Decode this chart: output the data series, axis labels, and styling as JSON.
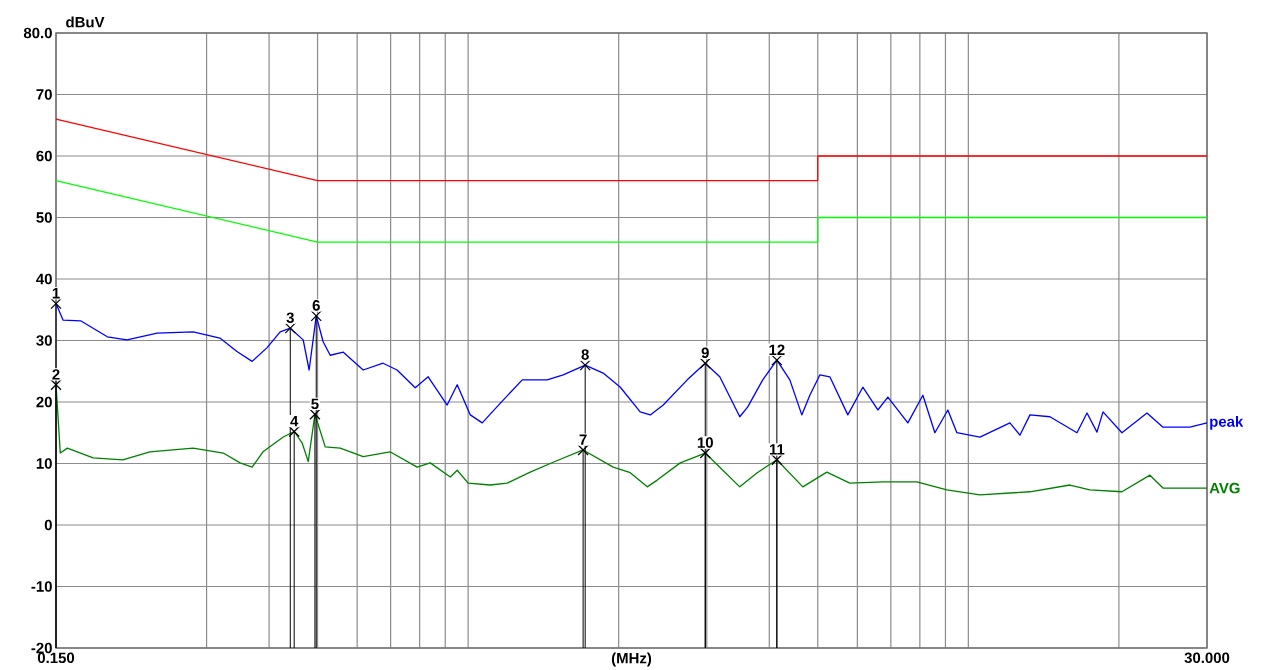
{
  "chart_data": {
    "type": "line",
    "xlabel": "(MHz)",
    "ylabel": "dBuV",
    "log": "x",
    "grid": true,
    "line_style": "solid",
    "xlim": [
      0.15,
      30
    ],
    "ylim": [
      -20,
      80
    ],
    "xticks": [
      {
        "value": 0.15,
        "label": "0.150"
      },
      {
        "value": 0.3,
        "label": null
      },
      {
        "value": 0.4,
        "label": null
      },
      {
        "value": 0.5,
        "label": null
      },
      {
        "value": 0.6,
        "label": null
      },
      {
        "value": 0.7,
        "label": null
      },
      {
        "value": 0.8,
        "label": null
      },
      {
        "value": 0.9,
        "label": null
      },
      {
        "value": 1,
        "label": null
      },
      {
        "value": 2,
        "label": null
      },
      {
        "value": 3,
        "label": null
      },
      {
        "value": 4,
        "label": null
      },
      {
        "value": 5,
        "label": null
      },
      {
        "value": 6,
        "label": null
      },
      {
        "value": 7,
        "label": null
      },
      {
        "value": 8,
        "label": null
      },
      {
        "value": 9,
        "label": null
      },
      {
        "value": 10,
        "label": null
      },
      {
        "value": 20,
        "label": null
      },
      {
        "value": 30,
        "label": "30.000"
      }
    ],
    "yticks": [
      {
        "value": 80,
        "label": "80.0"
      },
      70,
      60,
      50,
      40,
      30,
      20,
      10,
      0,
      -10,
      -20
    ],
    "series": [
      {
        "color": "#ff0000",
        "x": [
          0.15,
          0.5,
          5,
          5,
          30
        ],
        "values": [
          66,
          56,
          56,
          60,
          60
        ]
      },
      {
        "color": "#00ff00",
        "x": [
          0.15,
          0.5,
          5,
          5,
          30
        ],
        "values": [
          56,
          46,
          46,
          50,
          50
        ]
      },
      {
        "name": "peak",
        "color": "#0000ff",
        "x": [
          0.15,
          0.155,
          0.168,
          0.19,
          0.208,
          0.239,
          0.282,
          0.319,
          0.345,
          0.37,
          0.396,
          0.421,
          0.441,
          0.468,
          0.481,
          0.497,
          0.513,
          0.53,
          0.563,
          0.617,
          0.676,
          0.721,
          0.784,
          0.832,
          0.908,
          0.951,
          1.01,
          1.067,
          1.175,
          1.283,
          1.439,
          1.549,
          1.714,
          1.862,
          2.015,
          2.208,
          2.313,
          2.455,
          2.742,
          2.979,
          3.185,
          3.492,
          3.623,
          3.882,
          4.142,
          4.397,
          4.646,
          4.821,
          5.048,
          5.286,
          5.742,
          6.153,
          6.593,
          6.905,
          7.571,
          8.112,
          8.573,
          9.101,
          9.486,
          10.55,
          12.11,
          12.68,
          13.28,
          14.56,
          16.49,
          17.27,
          18.08,
          18.59,
          20.28,
          22.76,
          24.5,
          27.73,
          30
        ],
        "values": [
          36.0,
          33.3,
          33.2,
          30.6,
          30.1,
          31.2,
          31.4,
          30.4,
          28.2,
          26.6,
          28.8,
          31.4,
          32.0,
          30.1,
          25.2,
          34.0,
          29.8,
          27.6,
          28.1,
          25.2,
          26.3,
          25.2,
          22.3,
          24.1,
          19.5,
          22.8,
          17.9,
          16.6,
          20.3,
          23.6,
          23.6,
          24.4,
          26.0,
          24.7,
          22.4,
          18.4,
          17.9,
          19.5,
          23.6,
          26.3,
          24.1,
          17.6,
          19.2,
          23.6,
          26.8,
          23.6,
          17.9,
          21.1,
          24.4,
          24.1,
          17.9,
          22.4,
          18.7,
          20.8,
          16.6,
          21.1,
          15.0,
          18.7,
          15.0,
          14.3,
          16.6,
          14.6,
          17.9,
          17.6,
          15.0,
          18.2,
          15.1,
          18.4,
          15.0,
          18.2,
          15.9,
          15.9,
          16.6
        ]
      },
      {
        "name": "AVG",
        "color": "#008000",
        "x": [
          0.15,
          0.153,
          0.158,
          0.178,
          0.204,
          0.231,
          0.282,
          0.324,
          0.35,
          0.37,
          0.389,
          0.427,
          0.449,
          0.466,
          0.479,
          0.494,
          0.518,
          0.555,
          0.617,
          0.698,
          0.791,
          0.84,
          0.921,
          0.951,
          1.0,
          1.107,
          1.197,
          1.331,
          1.479,
          1.698,
          1.95,
          2.109,
          2.281,
          2.388,
          2.655,
          2.979,
          3.185,
          3.492,
          3.785,
          4.142,
          4.668,
          5.213,
          5.796,
          6.747,
          7.89,
          9.059,
          10.55,
          13.28,
          15.96,
          17.5,
          20.28,
          23.07,
          24.5,
          30
        ],
        "values": [
          22.8,
          11.7,
          12.5,
          10.9,
          10.6,
          11.9,
          12.5,
          11.7,
          10.1,
          9.4,
          11.9,
          14.3,
          15.2,
          13.3,
          10.3,
          18.0,
          12.7,
          12.5,
          11.1,
          11.9,
          9.4,
          10.1,
          7.8,
          8.9,
          6.8,
          6.5,
          6.8,
          8.6,
          10.2,
          12.2,
          9.4,
          8.5,
          6.2,
          7.3,
          10.1,
          11.7,
          9.4,
          6.2,
          8.5,
          10.6,
          6.2,
          8.6,
          6.8,
          7.0,
          7.0,
          5.7,
          4.9,
          5.4,
          6.5,
          5.7,
          5.4,
          8.1,
          6.0,
          6.0
        ]
      }
    ],
    "annotations": [
      {
        "text": "1",
        "x": 0.15,
        "y": 36.0
      },
      {
        "text": "2",
        "x": 0.15,
        "y": 22.8
      },
      {
        "text": "3",
        "x": 0.441,
        "y": 32.0
      },
      {
        "text": "4",
        "x": 0.449,
        "y": 15.2
      },
      {
        "text": "5",
        "x": 0.494,
        "y": 18.0
      },
      {
        "text": "6",
        "x": 0.497,
        "y": 34.0
      },
      {
        "text": "7",
        "x": 1.698,
        "y": 12.2
      },
      {
        "text": "8",
        "x": 1.714,
        "y": 26.0
      },
      {
        "text": "9",
        "x": 2.979,
        "y": 26.3
      },
      {
        "text": "10",
        "x": 2.979,
        "y": 11.7
      },
      {
        "text": "11",
        "x": 4.142,
        "y": 10.6
      },
      {
        "text": "12",
        "x": 4.142,
        "y": 26.8
      }
    ]
  }
}
